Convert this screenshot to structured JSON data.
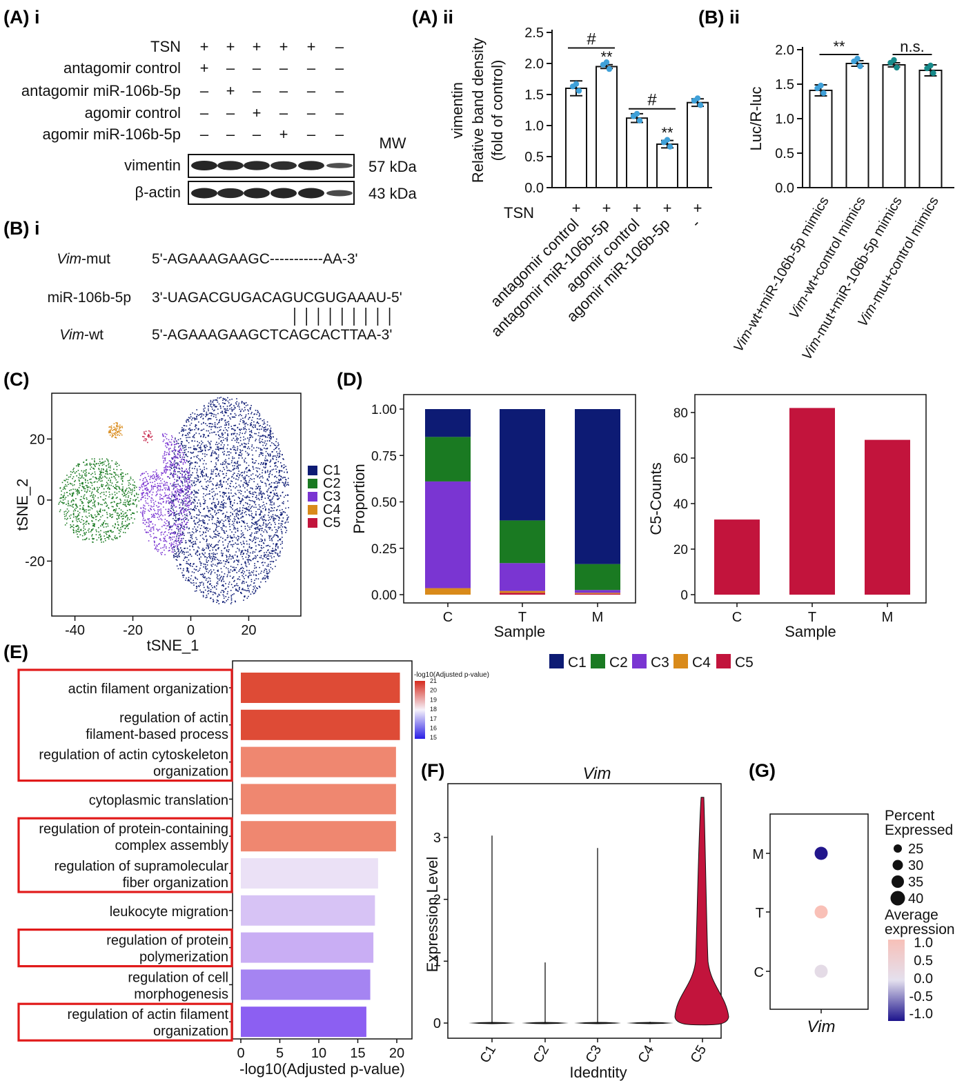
{
  "panel_labels": {
    "a_i": "(A) i",
    "a_ii": "(A) ii",
    "b_ii": "(B) ii",
    "b_i": "(B) i",
    "c": "(C)",
    "d": "(D)",
    "e": "(E)",
    "f": "(F)",
    "g": "(G)"
  },
  "western_blot": {
    "treatments": [
      {
        "name": "TSN",
        "signs": [
          "+",
          "+",
          "+",
          "+",
          "+",
          "–"
        ]
      },
      {
        "name": "antagomir control",
        "signs": [
          "+",
          "–",
          "–",
          "–",
          "–",
          "–"
        ]
      },
      {
        "name": "antagomir miR-106b-5p",
        "signs": [
          "–",
          "+",
          "–",
          "–",
          "–",
          "–"
        ]
      },
      {
        "name": "agomir control",
        "signs": [
          "–",
          "–",
          "+",
          "–",
          "–",
          "–"
        ]
      },
      {
        "name": "agomir miR-106b-5p",
        "signs": [
          "–",
          "–",
          "–",
          "+",
          "–",
          "–"
        ]
      }
    ],
    "mw_header": "MW",
    "bands": [
      {
        "name": "vimentin",
        "mw": "57 kDa"
      },
      {
        "name": "β-actin",
        "mw": "43 kDa"
      }
    ]
  },
  "sequences": {
    "rows": [
      {
        "name_italic": "Vim",
        "name_rest": "-mut",
        "seq": "5'-AGAAAGAAGC-----------AA-3'"
      },
      {
        "name_italic": "",
        "name_rest": "miR-106b-5p",
        "seq": "3'-UAGACGUGACAGUCGUGAAAU-5'"
      },
      {
        "name_italic": "Vim",
        "name_rest": "-wt",
        "seq": "5'-AGAAAGAAGCTCAGCACTTAA-3'"
      }
    ]
  },
  "chart_data": [
    {
      "id": "A-ii",
      "type": "bar",
      "ylabel_line1": "vimentin",
      "ylabel_line2": "Relative band density",
      "ylabel_line3": "(fold of control)",
      "ylim": [
        0,
        2.5
      ],
      "yticks": [
        "0.0",
        "0.5",
        "1.0",
        "1.5",
        "2.0",
        "2.5"
      ],
      "categories": [
        "antagomir control",
        "antagomir miR-106b-5p",
        "agomir control",
        "agomir miR-106b-5p",
        "-"
      ],
      "tsn_label": "TSN",
      "tsn_signs": [
        "+",
        "+",
        "+",
        "+",
        "+"
      ],
      "values": [
        1.6,
        1.95,
        1.12,
        0.7,
        1.37
      ],
      "errors": [
        0.12,
        0.03,
        0.07,
        0.06,
        0.06
      ],
      "annotations": [
        {
          "text": "#",
          "from": 0,
          "to": 1
        },
        {
          "text": "#",
          "from": 2,
          "to": 3
        },
        {
          "text": "**",
          "at": 1
        },
        {
          "text": "**",
          "at": 3
        }
      ]
    },
    {
      "id": "B-ii",
      "type": "bar",
      "ylabel": "Luc/R-luc",
      "ylim": [
        0,
        2.0
      ],
      "yticks": [
        "0.0",
        "0.5",
        "1.0",
        "1.5",
        "2.0"
      ],
      "categories": [
        {
          "italic": "Vim",
          "rest": "-wt+miR-106b-5p mimics"
        },
        {
          "italic": "Vim",
          "rest": "-wt+control mimics"
        },
        {
          "italic": "Vim",
          "rest": "-mut+miR-106b-5p mimics"
        },
        {
          "italic": "Vim",
          "rest": "-mut+control mimics"
        }
      ],
      "values": [
        1.41,
        1.8,
        1.78,
        1.7
      ],
      "errors": [
        0.08,
        0.04,
        0.03,
        0.08
      ],
      "annotations": [
        {
          "text": "**",
          "from": 0,
          "to": 1
        },
        {
          "text": "n.s.",
          "from": 2,
          "to": 3
        }
      ]
    },
    {
      "id": "C",
      "type": "scatter",
      "xlabel": "tSNE_1",
      "ylabel": "tSNE_2",
      "xticks": [
        -40,
        -20,
        0,
        20
      ],
      "yticks": [
        -20,
        0,
        20
      ],
      "xlim": [
        -48,
        38
      ],
      "ylim": [
        -38,
        35
      ],
      "legend": [
        "C1",
        "C2",
        "C3",
        "C4",
        "C5"
      ],
      "legend_position": "right"
    },
    {
      "id": "D-left",
      "type": "bar",
      "stacked": true,
      "xlabel": "Sample",
      "ylabel": "Proportion",
      "categories": [
        "C",
        "T",
        "M"
      ],
      "yticks": [
        "0.00",
        "0.25",
        "0.50",
        "0.75",
        "1.00"
      ],
      "ylim": [
        0,
        1.0
      ],
      "series": [
        {
          "name": "C5",
          "values": [
            0.0,
            0.01,
            0.005
          ]
        },
        {
          "name": "C4",
          "values": [
            0.035,
            0.01,
            0.005
          ]
        },
        {
          "name": "C3",
          "values": [
            0.575,
            0.15,
            0.015
          ]
        },
        {
          "name": "C2",
          "values": [
            0.24,
            0.23,
            0.14
          ]
        },
        {
          "name": "C1",
          "values": [
            0.15,
            0.6,
            0.835
          ]
        }
      ]
    },
    {
      "id": "D-right",
      "type": "bar",
      "xlabel": "Sample",
      "ylabel": "C5-Counts",
      "categories": [
        "C",
        "T",
        "M"
      ],
      "values": [
        33,
        82,
        68
      ],
      "yticks": [
        "0",
        "20",
        "40",
        "60",
        "80"
      ],
      "ylim": [
        0,
        85
      ]
    },
    {
      "id": "E",
      "type": "bar",
      "orientation": "horizontal",
      "xlabel": "-log10(Adjusted p-value)",
      "xticks": [
        "0",
        "5",
        "10",
        "15",
        "20"
      ],
      "xlim": [
        0,
        21.5
      ],
      "categories": [
        [
          "actin filament organization"
        ],
        [
          "regulation of actin",
          "filament-based process"
        ],
        [
          "regulation of actin cytoskeleton",
          "organization"
        ],
        [
          "cytoplasmic translation"
        ],
        [
          "regulation of protein-containing",
          "complex assembly"
        ],
        [
          "regulation of supramolecular",
          "fiber organization"
        ],
        [
          "leukocyte migration"
        ],
        [
          "regulation of protein",
          "polymerization"
        ],
        [
          "regulation of cell",
          "morphogenesis"
        ],
        [
          "regulation of actin filament",
          "organization"
        ]
      ],
      "values": [
        20.4,
        20.4,
        19.9,
        19.9,
        19.9,
        17.6,
        17.2,
        17.0,
        16.6,
        16.1
      ],
      "highlighted_groups": [
        [
          0,
          2
        ],
        [
          4,
          5
        ],
        [
          7,
          7
        ],
        [
          9,
          9
        ]
      ],
      "colorbar": {
        "title": "-log10(Adjusted p-value)",
        "ticks": [
          "21",
          "20",
          "19",
          "18",
          "17",
          "16",
          "15"
        ],
        "range": [
          15,
          21
        ]
      }
    },
    {
      "id": "F",
      "type": "violin",
      "title": "Vim",
      "xlabel": "Idedntity",
      "ylabel": "Expression Level",
      "categories": [
        "C1",
        "C2",
        "C3",
        "C4",
        "C5"
      ],
      "max_values": [
        3.03,
        0.98,
        2.83,
        0.02,
        3.65
      ],
      "yticks": [
        "0",
        "1",
        "2",
        "3"
      ],
      "ylim": [
        -0.15,
        3.85
      ]
    },
    {
      "id": "G",
      "type": "scatter",
      "subtype": "dot plot",
      "xlabel": "Vim",
      "categories": [
        "M",
        "T",
        "C"
      ],
      "average_expression": [
        -1.0,
        0.95,
        0.1
      ],
      "legend_size_title_1": "Percent",
      "legend_size_title_2": "Expressed",
      "size_legend": [
        "25",
        "30",
        "35",
        "40"
      ],
      "legend_color_title_1": "Average",
      "legend_color_title_2": "expression",
      "color_legend": [
        "1.0",
        "0.5",
        "0.0",
        "-0.5",
        "-1.0"
      ]
    }
  ],
  "d_legend": [
    "C1",
    "C2",
    "C3",
    "C4",
    "C5"
  ],
  "colors": {
    "C1": "#0d1b74",
    "C2": "#1a7a22",
    "C3": "#7a35d2",
    "C4": "#d98a1a",
    "C5": "#c2143c",
    "error": "#111111",
    "dot_blue": "#3fa0d8",
    "dot_teal": "#178a8a",
    "highlight": "#e11a1a"
  }
}
